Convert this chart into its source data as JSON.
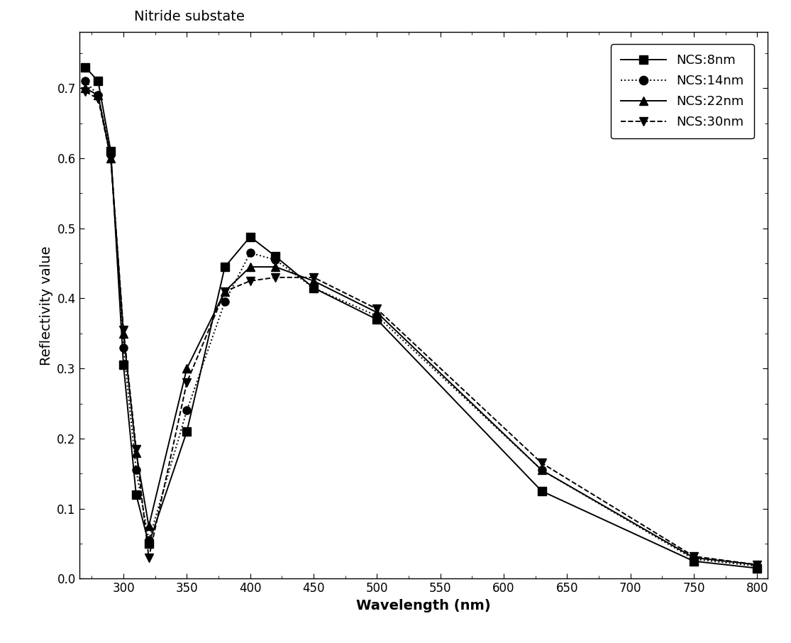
{
  "title": "Nitride substate",
  "xlabel": "Wavelength (nm)",
  "ylabel": "Reflectivity value",
  "xlim": [
    265,
    808
  ],
  "ylim": [
    0.0,
    0.78
  ],
  "xticks": [
    300,
    350,
    400,
    450,
    500,
    550,
    600,
    650,
    700,
    750,
    800
  ],
  "yticks": [
    0.0,
    0.1,
    0.2,
    0.3,
    0.4,
    0.5,
    0.6,
    0.7
  ],
  "series": [
    {
      "label": "NCS:8nm",
      "linestyle": "-",
      "marker": "s",
      "color": "#000000",
      "x": [
        270,
        280,
        290,
        300,
        310,
        320,
        350,
        380,
        400,
        420,
        450,
        500,
        630,
        750,
        800
      ],
      "y": [
        0.73,
        0.71,
        0.61,
        0.305,
        0.12,
        0.05,
        0.21,
        0.445,
        0.488,
        0.46,
        0.415,
        0.37,
        0.125,
        0.025,
        0.015
      ]
    },
    {
      "label": "NCS:14nm",
      "linestyle": ":",
      "marker": "o",
      "color": "#000000",
      "x": [
        270,
        280,
        290,
        300,
        310,
        320,
        350,
        380,
        400,
        420,
        450,
        500,
        630,
        750,
        800
      ],
      "y": [
        0.71,
        0.69,
        0.605,
        0.33,
        0.155,
        0.055,
        0.24,
        0.395,
        0.465,
        0.455,
        0.415,
        0.375,
        0.155,
        0.028,
        0.018
      ]
    },
    {
      "label": "NCS:22nm",
      "linestyle": "-",
      "marker": "^",
      "color": "#000000",
      "x": [
        270,
        280,
        290,
        300,
        310,
        320,
        350,
        380,
        400,
        420,
        450,
        500,
        630,
        750,
        800
      ],
      "y": [
        0.7,
        0.69,
        0.6,
        0.35,
        0.18,
        0.075,
        0.3,
        0.41,
        0.445,
        0.445,
        0.425,
        0.38,
        0.155,
        0.03,
        0.02
      ]
    },
    {
      "label": "NCS:30nm",
      "linestyle": "--",
      "marker": "v",
      "color": "#000000",
      "x": [
        270,
        280,
        290,
        300,
        310,
        320,
        350,
        380,
        400,
        420,
        450,
        500,
        630,
        750,
        800
      ],
      "y": [
        0.695,
        0.685,
        0.6,
        0.355,
        0.185,
        0.03,
        0.28,
        0.41,
        0.425,
        0.43,
        0.43,
        0.385,
        0.165,
        0.032,
        0.02
      ]
    }
  ],
  "background_color": "#ffffff",
  "title_fontsize": 14,
  "label_fontsize": 14,
  "tick_fontsize": 12,
  "legend_fontsize": 13
}
